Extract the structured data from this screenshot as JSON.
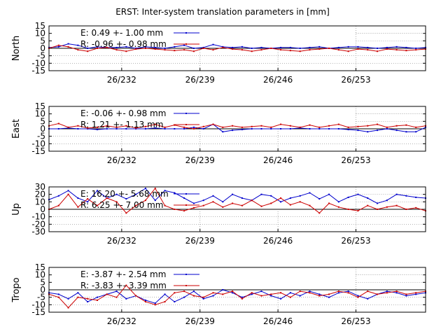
{
  "title": "ERST: Inter-system translation parameters in [mm]",
  "colors": {
    "E": "#0000cc",
    "R": "#cc0000",
    "grid": "#888888"
  },
  "x_ticks": [
    "26/232",
    "26/239",
    "26/246",
    "26/253"
  ],
  "chart_data": [
    {
      "type": "line",
      "ylabel": "North",
      "ylim": [
        -15,
        15
      ],
      "yticks": [
        15,
        10,
        5,
        0,
        -5,
        -10,
        -15
      ],
      "legend": [
        "E:   0.49 +- 1.00 mm",
        "R:  -0.96 +- 0.98 mm"
      ],
      "series": [
        {
          "name": "E",
          "values": [
            0.5,
            1.0,
            3.0,
            2.0,
            0.0,
            1.0,
            0.5,
            0.5,
            1.0,
            0.0,
            1.0,
            0.5,
            0.0,
            1.0,
            2.0,
            0.0,
            0.5,
            2.5,
            1.0,
            0.5,
            1.0,
            0.0,
            0.5,
            0.0,
            0.5,
            0.5,
            0.0,
            0.5,
            1.0,
            0.0,
            0.5,
            1.0,
            1.0,
            0.5,
            0.0,
            0.5,
            1.0,
            0.5,
            0.0,
            0.5
          ]
        },
        {
          "name": "R",
          "values": [
            0.0,
            2.0,
            1.0,
            -1.0,
            -2.0,
            0.0,
            0.5,
            -1.0,
            -2.0,
            -0.5,
            0.0,
            -0.5,
            -1.0,
            -1.5,
            -1.0,
            -2.0,
            0.0,
            -1.0,
            0.5,
            -0.5,
            -1.0,
            -2.0,
            -1.0,
            0.0,
            -1.0,
            -1.5,
            -2.0,
            -1.0,
            -0.5,
            0.0,
            -1.0,
            -2.0,
            -0.5,
            -1.0,
            -2.0,
            -0.5,
            -1.0,
            -1.5,
            -1.0,
            -0.5
          ]
        }
      ]
    },
    {
      "type": "line",
      "ylabel": "East",
      "ylim": [
        -15,
        15
      ],
      "yticks": [
        15,
        10,
        5,
        0,
        -5,
        -10,
        -15
      ],
      "legend": [
        "E:  -0.06 +- 0.98 mm",
        "R:   1.21 +- 1.13 mm"
      ],
      "series": [
        {
          "name": "E",
          "values": [
            0.0,
            0.0,
            0.5,
            0.0,
            0.0,
            -0.5,
            0.0,
            0.0,
            0.0,
            0.0,
            0.0,
            0.5,
            0.0,
            0.0,
            0.0,
            1.0,
            0.0,
            3.0,
            -2.0,
            -1.0,
            -0.5,
            0.0,
            0.0,
            0.0,
            0.0,
            0.0,
            0.5,
            0.0,
            0.0,
            0.0,
            0.0,
            -0.5,
            -1.0,
            -2.0,
            -1.0,
            0.0,
            -1.0,
            -2.0,
            -2.0,
            1.0
          ]
        },
        {
          "name": "R",
          "values": [
            2.0,
            3.5,
            1.0,
            2.0,
            0.5,
            1.0,
            2.0,
            1.0,
            2.0,
            0.5,
            1.5,
            3.0,
            1.0,
            2.5,
            1.0,
            0.0,
            1.5,
            3.0,
            1.0,
            2.0,
            1.0,
            1.5,
            2.0,
            1.0,
            3.0,
            2.0,
            1.0,
            2.5,
            1.0,
            2.0,
            3.0,
            1.0,
            1.5,
            2.0,
            3.0,
            1.0,
            2.0,
            2.5,
            1.0,
            2.0
          ]
        }
      ]
    },
    {
      "type": "line",
      "ylabel": "Up",
      "ylim": [
        -30,
        30
      ],
      "yticks": [
        30,
        20,
        10,
        0,
        -10,
        -20,
        -30
      ],
      "legend": [
        "E:  16.20 +- 5.68 mm",
        "R:   6.25 +- 7.00 mm"
      ],
      "series": [
        {
          "name": "E",
          "values": [
            13,
            18,
            25,
            15,
            10,
            25,
            15,
            20,
            14,
            20,
            28,
            12,
            25,
            22,
            15,
            8,
            12,
            18,
            10,
            20,
            15,
            12,
            20,
            18,
            10,
            15,
            18,
            22,
            14,
            20,
            10,
            16,
            20,
            15,
            8,
            12,
            20,
            18,
            16,
            15
          ]
        },
        {
          "name": "R",
          "values": [
            0,
            5,
            20,
            3,
            14,
            5,
            15,
            10,
            -5,
            5,
            12,
            28,
            5,
            0,
            -2,
            2,
            5,
            10,
            3,
            8,
            5,
            12,
            4,
            8,
            15,
            6,
            10,
            5,
            -5,
            8,
            3,
            0,
            -2,
            5,
            0,
            3,
            5,
            0,
            2,
            -2
          ]
        }
      ]
    },
    {
      "type": "line",
      "ylabel": "Tropo",
      "ylim": [
        -15,
        15
      ],
      "yticks": [
        15,
        10,
        5,
        0,
        -5,
        -10,
        -15
      ],
      "legend": [
        "E:  -3.87 +- 2.54 mm",
        "R:  -3.83 +- 3.39 mm"
      ],
      "series": [
        {
          "name": "E",
          "values": [
            -2,
            -3,
            -6,
            -2,
            -8,
            -5,
            -3,
            -1,
            -6,
            -4,
            -7,
            -9,
            -3,
            -8,
            -5,
            -1,
            -6,
            -4,
            0,
            -2,
            -5,
            -3,
            -1,
            -4,
            -6,
            -2,
            -4,
            -1,
            -3,
            -5,
            -2,
            -1,
            -4,
            -6,
            -3,
            -1,
            -2,
            -4,
            -3,
            -2
          ]
        },
        {
          "name": "R",
          "values": [
            -3,
            -5,
            -12,
            -5,
            -6,
            -7,
            -3,
            -5,
            3,
            -4,
            -8,
            -10,
            -8,
            -2,
            -1,
            -4,
            -5,
            -2,
            -3,
            -1,
            -6,
            -2,
            -4,
            -3,
            -2,
            -5,
            -1,
            -2,
            -4,
            -3,
            -1,
            -2,
            -5,
            -1,
            -3,
            -2,
            -1,
            -3,
            -2,
            -1
          ]
        }
      ]
    }
  ]
}
